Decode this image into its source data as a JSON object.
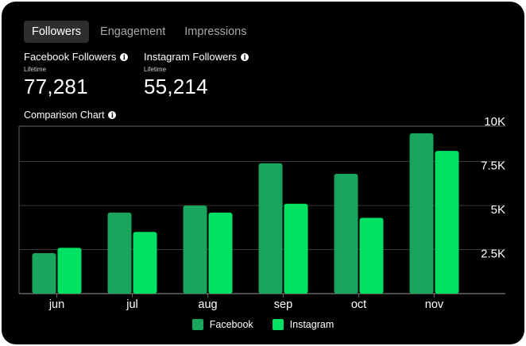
{
  "tabs": [
    {
      "label": "Followers",
      "active": true
    },
    {
      "label": "Engagement",
      "active": false
    },
    {
      "label": "Impressions",
      "active": false
    }
  ],
  "metrics": [
    {
      "label": "Facebook Followers",
      "sub": "Lifetime",
      "value": "77,281"
    },
    {
      "label": "Instagram Followers",
      "sub": "Lifetime",
      "value": "55,214"
    }
  ],
  "chart_title": "Comparison Chart",
  "icons": {
    "info": "info-icon"
  },
  "colors": {
    "facebook": "#1aa55e",
    "instagram": "#00e063",
    "background": "#000000",
    "grid": "#444444"
  },
  "chart_data": {
    "type": "bar",
    "categories": [
      "jun",
      "jul",
      "aug",
      "sep",
      "oct",
      "nov"
    ],
    "series": [
      {
        "name": "Facebook",
        "values": [
          2300,
          4600,
          5000,
          7400,
          6800,
          9100
        ]
      },
      {
        "name": "Instagram",
        "values": [
          2600,
          3500,
          4600,
          5100,
          4300,
          8100
        ]
      }
    ],
    "ylim": [
      0,
      10000
    ],
    "yticks": [
      2500,
      5000,
      7500,
      10000
    ],
    "ytick_labels": [
      "2.5K",
      "5K",
      "7.5K",
      "10K"
    ],
    "grid": true,
    "legend": "bottom-center"
  }
}
